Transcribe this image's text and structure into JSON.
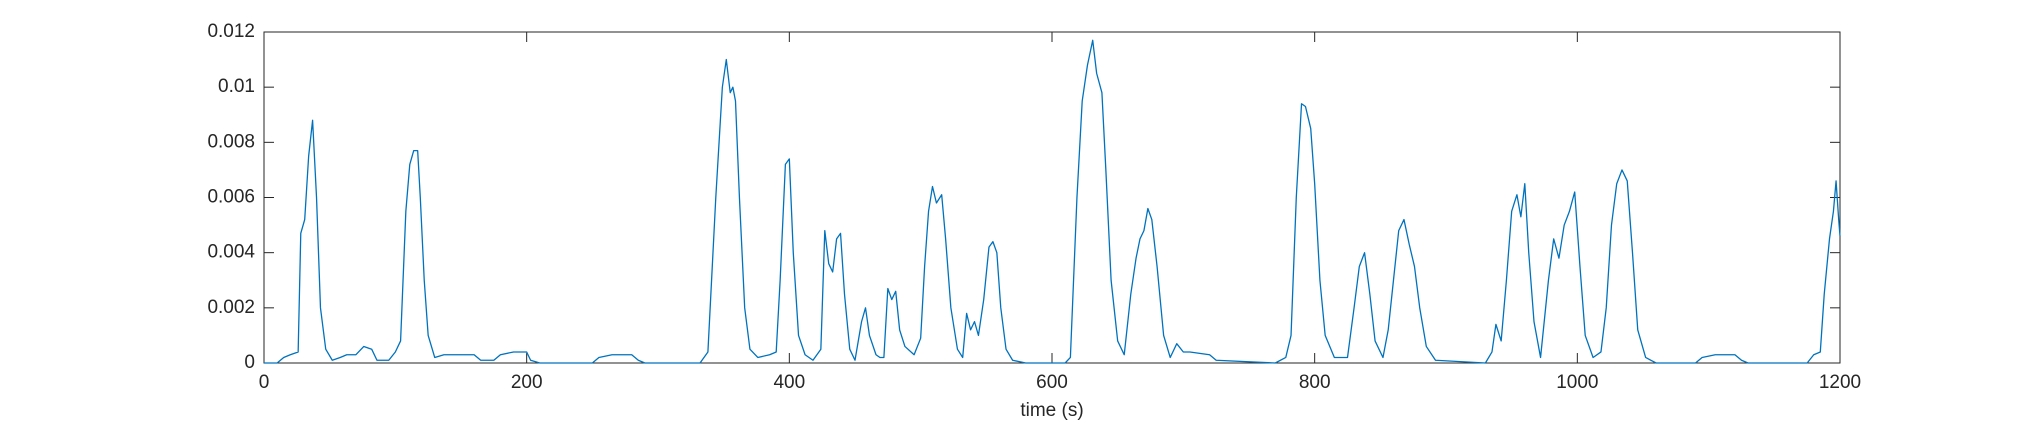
{
  "chart_data": {
    "type": "line",
    "xlabel": "time (s)",
    "x": [
      0,
      10,
      15,
      20,
      26,
      28,
      31,
      34,
      37,
      40,
      43,
      47,
      52,
      58,
      63,
      70,
      76,
      82,
      86,
      95,
      100,
      104,
      108,
      111,
      114,
      117,
      119,
      122,
      125,
      130,
      137,
      160,
      165,
      175,
      180,
      190,
      200,
      203,
      210,
      250,
      255,
      265,
      280,
      285,
      290,
      332,
      338,
      344,
      349,
      352,
      355,
      357,
      359,
      362,
      366,
      370,
      376,
      385,
      390,
      393,
      397,
      400,
      403,
      407,
      412,
      418,
      424,
      427,
      430,
      433,
      436,
      439,
      442,
      446,
      450,
      455,
      458,
      461,
      466,
      469,
      472,
      475,
      478,
      481,
      484,
      488,
      495,
      500,
      503,
      506,
      509,
      512,
      516,
      519,
      523,
      528,
      532,
      535,
      538,
      541,
      544,
      548,
      552,
      555,
      558,
      561,
      565,
      570,
      580,
      610,
      614,
      619,
      623,
      627,
      631,
      634,
      638,
      641,
      645,
      650,
      655,
      660,
      664,
      667,
      670,
      673,
      676,
      680,
      685,
      690,
      695,
      700,
      705,
      720,
      725,
      770,
      778,
      782,
      786,
      790,
      793,
      797,
      800,
      804,
      808,
      815,
      825,
      830,
      834,
      838,
      842,
      846,
      852,
      856,
      860,
      864,
      868,
      872,
      876,
      880,
      885,
      892,
      930,
      935,
      938,
      942,
      946,
      950,
      954,
      957,
      960,
      963,
      967,
      972,
      978,
      982,
      986,
      990,
      994,
      998,
      1002,
      1006,
      1012,
      1018,
      1022,
      1026,
      1030,
      1034,
      1038,
      1042,
      1046,
      1052,
      1060,
      1090,
      1095,
      1105,
      1120,
      1125,
      1130,
      1175,
      1180,
      1185,
      1188,
      1192,
      1195,
      1197,
      1199,
      1200
    ],
    "series": [
      {
        "color": "#0072bd",
        "values": [
          0,
          0,
          0.0002,
          0.0003,
          0.0004,
          0.0047,
          0.0052,
          0.0075,
          0.0088,
          0.006,
          0.002,
          0.0005,
          0.0001,
          0.0002,
          0.0003,
          0.0003,
          0.0006,
          0.0005,
          0.0001,
          0.0001,
          0.0004,
          0.0008,
          0.0055,
          0.0072,
          0.0077,
          0.0077,
          0.006,
          0.003,
          0.001,
          0.0002,
          0.0003,
          0.0003,
          0.0001,
          0.0001,
          0.0003,
          0.0004,
          0.0004,
          0.0001,
          0,
          0,
          0.0002,
          0.0003,
          0.0003,
          0.0001,
          0,
          0,
          0.0004,
          0.006,
          0.01,
          0.011,
          0.0098,
          0.01,
          0.0095,
          0.006,
          0.002,
          0.0005,
          0.0002,
          0.0003,
          0.0004,
          0.003,
          0.0072,
          0.0074,
          0.004,
          0.001,
          0.0003,
          0.0001,
          0.0005,
          0.0048,
          0.0036,
          0.0033,
          0.0045,
          0.0047,
          0.0025,
          0.0005,
          0.0001,
          0.0015,
          0.002,
          0.001,
          0.0003,
          0.0002,
          0.0002,
          0.0027,
          0.0023,
          0.0026,
          0.0012,
          0.0006,
          0.0003,
          0.0009,
          0.0035,
          0.0055,
          0.0064,
          0.0058,
          0.0061,
          0.0045,
          0.002,
          0.0005,
          0.0002,
          0.0018,
          0.0012,
          0.0015,
          0.001,
          0.0023,
          0.0042,
          0.0044,
          0.004,
          0.002,
          0.0005,
          0.0001,
          0,
          0,
          0.0002,
          0.006,
          0.0095,
          0.0108,
          0.0117,
          0.0105,
          0.0098,
          0.007,
          0.003,
          0.0008,
          0.0003,
          0.0025,
          0.0038,
          0.0045,
          0.0048,
          0.0056,
          0.0052,
          0.0035,
          0.001,
          0.0002,
          0.0007,
          0.0004,
          0.0004,
          0.0003,
          0.0001,
          0,
          0.0002,
          0.001,
          0.006,
          0.0094,
          0.0093,
          0.0085,
          0.0065,
          0.003,
          0.001,
          0.0002,
          0.0002,
          0.002,
          0.0035,
          0.004,
          0.0025,
          0.0008,
          0.0002,
          0.0012,
          0.003,
          0.0048,
          0.0052,
          0.0043,
          0.0035,
          0.002,
          0.0006,
          0.0001,
          0,
          0.0004,
          0.0014,
          0.0008,
          0.003,
          0.0055,
          0.0061,
          0.0053,
          0.0065,
          0.004,
          0.0015,
          0.0002,
          0.003,
          0.0045,
          0.0038,
          0.005,
          0.0055,
          0.0062,
          0.0035,
          0.001,
          0.0002,
          0.0004,
          0.002,
          0.005,
          0.0065,
          0.007,
          0.0066,
          0.004,
          0.0012,
          0.0002,
          0,
          0,
          0.0002,
          0.0003,
          0.0003,
          0.0001,
          0,
          0,
          0.0003,
          0.0004,
          0.0025,
          0.0045,
          0.0055,
          0.0066,
          0.0052,
          0.0046
        ]
      }
    ],
    "xlim": [
      0,
      1200
    ],
    "xticks": [
      0,
      200,
      400,
      600,
      800,
      1000,
      1200
    ],
    "ylim": [
      0,
      0.012
    ],
    "yticks": [
      0,
      0.002,
      0.004,
      0.006,
      0.008,
      0.01,
      0.012
    ]
  }
}
